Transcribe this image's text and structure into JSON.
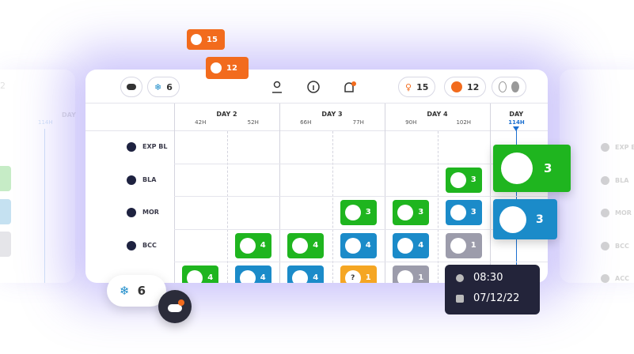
{
  "floating_badges": [
    {
      "count": "15"
    },
    {
      "count": "12"
    }
  ],
  "header": {
    "left_pill": "6",
    "right_pills": [
      "15",
      "12"
    ]
  },
  "days": [
    {
      "label": "DAY 2",
      "hours": [
        "42H",
        "52H"
      ]
    },
    {
      "label": "DAY 3",
      "hours": [
        "66H",
        "77H"
      ]
    },
    {
      "label": "DAY 4",
      "hours": [
        "90H",
        "102H"
      ]
    },
    {
      "label": "DAY",
      "hours": [
        "114H"
      ]
    }
  ],
  "rows": [
    {
      "label": "EXP BL",
      "cells": [
        null,
        null,
        null,
        null,
        null,
        null,
        null
      ]
    },
    {
      "label": "BLA",
      "cells": [
        null,
        null,
        null,
        null,
        null,
        {
          "count": "3",
          "color": "#1fb51f"
        },
        null
      ]
    },
    {
      "label": "MOR",
      "cells": [
        null,
        null,
        null,
        {
          "count": "3",
          "color": "#1fb51f"
        },
        {
          "count": "3",
          "color": "#1fb51f"
        },
        {
          "count": "3",
          "color": "#1b8bc9"
        },
        null
      ]
    },
    {
      "label": "BCC",
      "cells": [
        null,
        {
          "count": "4",
          "color": "#1fb51f"
        },
        {
          "count": "4",
          "color": "#1fb51f"
        },
        {
          "count": "4",
          "color": "#1b8bc9"
        },
        {
          "count": "4",
          "color": "#1b8bc9"
        },
        {
          "count": "1",
          "color": "#9c9cab"
        },
        null
      ]
    },
    {
      "cells": [
        {
          "count": "4",
          "color": "#1fb51f"
        },
        {
          "count": "4",
          "color": "#1b8bc9"
        },
        {
          "count": "4",
          "color": "#1b8bc9"
        },
        {
          "count": "1",
          "color": "#f5a623",
          "mark": "?"
        },
        {
          "count": "1",
          "color": "#9c9cab"
        },
        null,
        null
      ]
    }
  ],
  "zoom_cards": [
    {
      "count": "3",
      "color": "#1fb51f"
    },
    {
      "count": "3",
      "color": "#1b8bc9"
    }
  ],
  "tooltip": {
    "time": "08:30",
    "date": "07/12/22"
  },
  "bottom_pill": "6",
  "ghost_left": {
    "pill": "2",
    "day": "DAY",
    "hour": "114H"
  },
  "ghost_right": {
    "labels": [
      "EXP B",
      "BLA",
      "MOR",
      "BCC",
      "ACC"
    ]
  }
}
